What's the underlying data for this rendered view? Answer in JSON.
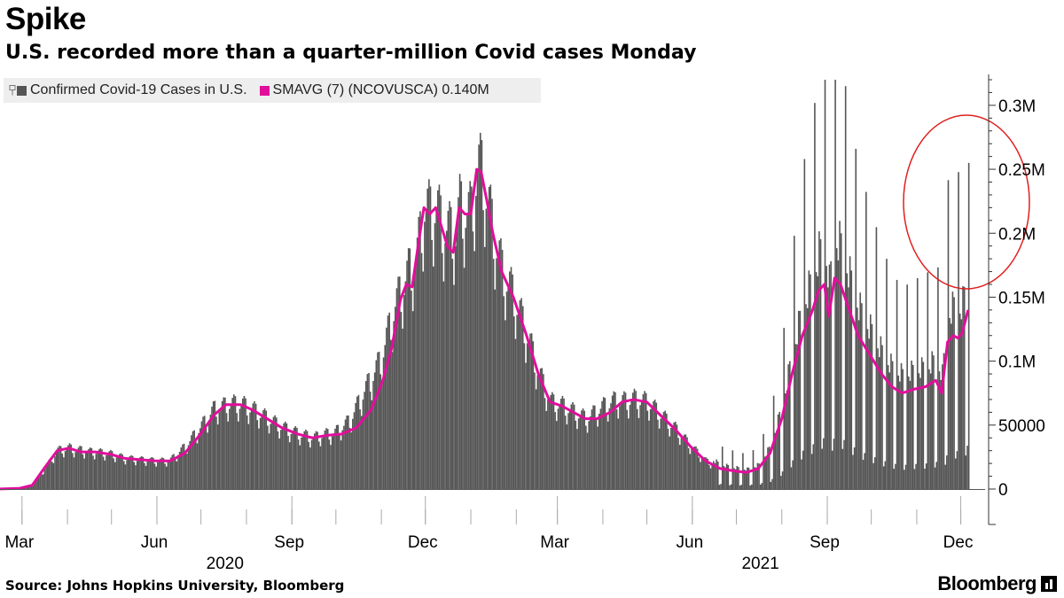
{
  "headline": "Spike",
  "subhead": "U.S. recorded more than a quarter-million Covid cases Monday",
  "legend": {
    "bar_label": "Confirmed Covid-19 Cases in U.S.",
    "line_label": "SMAVG (7) (NCOVUSCA) 0.140M"
  },
  "source": "Source: Johns Hopkins University, Bloomberg",
  "brand": "Bloomberg",
  "colors": {
    "bars": "#555555",
    "line": "#e10e9b",
    "highlight_circle": "#e02020",
    "axis": "#333333"
  },
  "chart_data": {
    "type": "bar",
    "title": "",
    "xlabel": "",
    "ylabel": "",
    "ylim": [
      0,
      320000
    ],
    "xlim": [
      "2020-02-15",
      "2021-12-20"
    ],
    "y_ticks": [
      {
        "value": 0,
        "label": "0"
      },
      {
        "value": 50000,
        "label": "50000"
      },
      {
        "value": 100000,
        "label": "0.1M"
      },
      {
        "value": 150000,
        "label": "0.15M"
      },
      {
        "value": 200000,
        "label": "0.2M"
      },
      {
        "value": 250000,
        "label": "0.25M"
      },
      {
        "value": 300000,
        "label": "0.3M"
      }
    ],
    "x_ticks": [
      {
        "date": "2020-03-01",
        "label": "Mar"
      },
      {
        "date": "2020-06-01",
        "label": "Jun"
      },
      {
        "date": "2020-09-01",
        "label": "Sep"
      },
      {
        "date": "2020-12-01",
        "label": "Dec"
      },
      {
        "date": "2021-03-01",
        "label": "Mar"
      },
      {
        "date": "2021-06-01",
        "label": "Jun"
      },
      {
        "date": "2021-09-01",
        "label": "Sep"
      },
      {
        "date": "2021-12-01",
        "label": "Dec"
      }
    ],
    "year_labels": [
      {
        "date": "2020-07-15",
        "label": "2020"
      },
      {
        "date": "2021-07-15",
        "label": "2021"
      }
    ],
    "legend_position": "top-left",
    "grid": false,
    "series": [
      {
        "name": "Confirmed Covid-19 Cases in U.S.",
        "type": "bar",
        "x": [
          "2020-03-01",
          "2020-03-10",
          "2020-03-20",
          "2020-03-31",
          "2020-04-10",
          "2020-04-20",
          "2020-04-30",
          "2020-05-10",
          "2020-05-20",
          "2020-05-31",
          "2020-06-10",
          "2020-06-20",
          "2020-06-30",
          "2020-07-10",
          "2020-07-20",
          "2020-07-31",
          "2020-08-10",
          "2020-08-20",
          "2020-08-31",
          "2020-09-10",
          "2020-09-20",
          "2020-09-30",
          "2020-10-10",
          "2020-10-20",
          "2020-10-31",
          "2020-11-10",
          "2020-11-20",
          "2020-11-30",
          "2020-12-10",
          "2020-12-20",
          "2020-12-31",
          "2021-01-10",
          "2021-01-20",
          "2021-01-31",
          "2021-02-10",
          "2021-02-20",
          "2021-02-28",
          "2021-03-10",
          "2021-03-20",
          "2021-03-31",
          "2021-04-10",
          "2021-04-20",
          "2021-04-30",
          "2021-05-10",
          "2021-05-20",
          "2021-05-31",
          "2021-06-10",
          "2021-06-20",
          "2021-06-30",
          "2021-07-10",
          "2021-07-20",
          "2021-07-31",
          "2021-08-10",
          "2021-08-20",
          "2021-08-31",
          "2021-09-10",
          "2021-09-20",
          "2021-09-30",
          "2021-10-10",
          "2021-10-20",
          "2021-10-31",
          "2021-11-10",
          "2021-11-20",
          "2021-11-30",
          "2021-12-06"
        ],
        "values": [
          100,
          1000,
          8000,
          30000,
          32000,
          29000,
          28000,
          25000,
          23000,
          21000,
          24000,
          35000,
          50000,
          66000,
          68000,
          64000,
          54000,
          45000,
          42000,
          38000,
          44000,
          46000,
          56000,
          80000,
          105000,
          150000,
          180000,
          195000,
          215000,
          210000,
          215000,
          240000,
          185000,
          150000,
          105000,
          72000,
          64000,
          57000,
          57000,
          67000,
          73000,
          68000,
          56000,
          47000,
          33000,
          21000,
          16000,
          14000,
          16000,
          28000,
          58000,
          120000,
          135000,
          165000,
          162000,
          135000,
          120000,
          105000,
          90000,
          75000,
          78000,
          85000,
          95000,
          115000,
          255000
        ]
      },
      {
        "name": "SMAVG (7) (NCOVUSCA) 0.140M",
        "type": "line",
        "x": [
          "2020-02-15",
          "2020-02-28",
          "2020-03-08",
          "2020-03-16",
          "2020-03-25",
          "2020-04-02",
          "2020-04-10",
          "2020-04-20",
          "2020-05-01",
          "2020-05-10",
          "2020-05-20",
          "2020-05-31",
          "2020-06-10",
          "2020-06-20",
          "2020-06-30",
          "2020-07-10",
          "2020-07-18",
          "2020-07-28",
          "2020-08-05",
          "2020-08-15",
          "2020-08-25",
          "2020-09-05",
          "2020-09-15",
          "2020-09-25",
          "2020-10-05",
          "2020-10-15",
          "2020-10-25",
          "2020-11-02",
          "2020-11-08",
          "2020-11-14",
          "2020-11-18",
          "2020-11-22",
          "2020-11-26",
          "2020-11-30",
          "2020-12-04",
          "2020-12-08",
          "2020-12-12",
          "2020-12-16",
          "2020-12-20",
          "2020-12-24",
          "2020-12-28",
          "2021-01-01",
          "2021-01-05",
          "2021-01-08",
          "2021-01-12",
          "2021-01-16",
          "2021-01-22",
          "2021-01-30",
          "2021-02-08",
          "2021-02-16",
          "2021-02-24",
          "2021-03-04",
          "2021-03-12",
          "2021-03-20",
          "2021-03-28",
          "2021-04-06",
          "2021-04-14",
          "2021-04-22",
          "2021-05-01",
          "2021-05-10",
          "2021-05-20",
          "2021-05-31",
          "2021-06-10",
          "2021-06-20",
          "2021-06-30",
          "2021-07-08",
          "2021-07-16",
          "2021-07-24",
          "2021-08-01",
          "2021-08-08",
          "2021-08-15",
          "2021-08-22",
          "2021-08-26",
          "2021-08-30",
          "2021-09-02",
          "2021-09-06",
          "2021-09-10",
          "2021-09-16",
          "2021-09-22",
          "2021-09-30",
          "2021-10-08",
          "2021-10-15",
          "2021-10-22",
          "2021-10-30",
          "2021-11-07",
          "2021-11-14",
          "2021-11-18",
          "2021-11-22",
          "2021-11-26",
          "2021-11-29",
          "2021-12-02",
          "2021-12-06"
        ],
        "values": [
          100,
          500,
          3000,
          16000,
          30000,
          32000,
          29000,
          29000,
          27000,
          24000,
          23000,
          22000,
          22000,
          28000,
          42000,
          58000,
          66000,
          66000,
          62000,
          55000,
          48000,
          43000,
          40000,
          42000,
          43000,
          48000,
          62000,
          85000,
          110000,
          148000,
          160000,
          158000,
          190000,
          220000,
          215000,
          220000,
          205000,
          190000,
          185000,
          220000,
          215000,
          215000,
          250000,
          248000,
          225000,
          200000,
          170000,
          150000,
          120000,
          90000,
          68000,
          65000,
          60000,
          55000,
          55000,
          60000,
          68000,
          70000,
          68000,
          58000,
          47000,
          33000,
          22000,
          16000,
          14000,
          13000,
          16000,
          28000,
          55000,
          90000,
          120000,
          140000,
          155000,
          160000,
          135000,
          165000,
          160000,
          140000,
          120000,
          105000,
          90000,
          80000,
          75000,
          78000,
          80000,
          85000,
          75000,
          115000,
          120000,
          118000,
          122000,
          140000
        ]
      }
    ]
  }
}
